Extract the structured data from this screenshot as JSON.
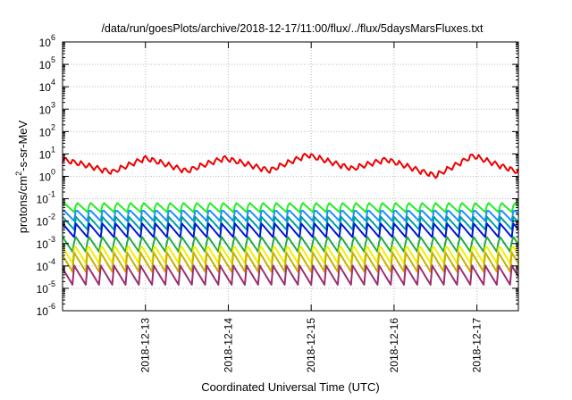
{
  "chart_data": {
    "type": "line",
    "title": "/data/run/goesPlots/archive/2018-12-17/11:00/flux/../flux/5daysMarsFluxes.txt",
    "xlabel": "Coordinated Universal Time (UTC)",
    "ylabel_parts": [
      "protons/cm",
      "2",
      "-s-sr-MeV"
    ],
    "yscale": "log",
    "ylim_exp": [
      -6,
      6
    ],
    "y_ticks": [
      {
        "base": "10",
        "exp": "6"
      },
      {
        "base": "10",
        "exp": "5"
      },
      {
        "base": "10",
        "exp": "4"
      },
      {
        "base": "10",
        "exp": "3"
      },
      {
        "base": "10",
        "exp": "2"
      },
      {
        "base": "10",
        "exp": "1"
      },
      {
        "base": "10",
        "exp": "0"
      },
      {
        "base": "10",
        "exp": "-1"
      },
      {
        "base": "10",
        "exp": "-2"
      },
      {
        "base": "10",
        "exp": "-3"
      },
      {
        "base": "10",
        "exp": "-4"
      },
      {
        "base": "10",
        "exp": "-5"
      },
      {
        "base": "10",
        "exp": "-6"
      }
    ],
    "xlim_days": [
      12.0,
      17.5
    ],
    "x_ticks": [
      "2018-12-13",
      "2018-12-14",
      "2018-12-15",
      "2018-12-16",
      "2018-12-17"
    ],
    "x_tick_days": [
      13,
      14,
      15,
      16,
      17
    ],
    "grid": true,
    "series": [
      {
        "color": "#ee0000",
        "period": 0.096,
        "base_log": 0.05,
        "amp": 0.55,
        "cycle": [
          [
            12.0,
            0.72
          ],
          [
            12.6,
            0.15
          ],
          [
            13.0,
            0.78
          ],
          [
            13.5,
            0.2
          ],
          [
            13.95,
            0.78
          ],
          [
            14.5,
            0.22
          ],
          [
            14.95,
            0.92
          ],
          [
            15.5,
            0.3
          ],
          [
            15.9,
            0.72
          ],
          [
            16.5,
            -0.02
          ],
          [
            16.95,
            0.88
          ],
          [
            17.5,
            0.15
          ]
        ]
      },
      {
        "color": "#22ee22",
        "period": 0.16,
        "base_log": -1.4,
        "amp": 0.25
      },
      {
        "color": "#1f8fff",
        "period": 0.16,
        "base_log": -1.75,
        "amp": 0.28
      },
      {
        "color": "#00a0a0",
        "period": 0.16,
        "base_log": -2.1,
        "amp": 0.3
      },
      {
        "color": "#0018d0",
        "period": 0.16,
        "base_log": -2.4,
        "amp": 0.32
      },
      {
        "color": "#22aa44",
        "period": 0.16,
        "base_log": -3.05,
        "amp": 0.4
      },
      {
        "color": "#f2ee00",
        "period": 0.16,
        "base_log": -3.5,
        "amp": 0.45
      },
      {
        "color": "#c8b000",
        "period": 0.16,
        "base_log": -3.85,
        "amp": 0.45
      },
      {
        "color": "#9a3070",
        "period": 0.16,
        "base_log": -4.4,
        "amp": 0.45
      }
    ]
  }
}
